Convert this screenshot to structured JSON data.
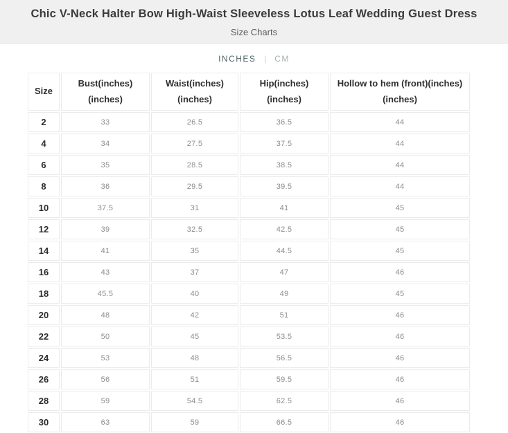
{
  "page": {
    "title": "Chic V-Neck Halter Bow High-Waist Sleeveless Lotus Leaf Wedding Guest Dress",
    "subtitle": "Size Charts"
  },
  "unit_toggle": {
    "options": [
      {
        "label": "INCHES",
        "selected": true
      },
      {
        "label": "CM",
        "selected": false
      }
    ],
    "separator": "|",
    "selected_color": "#4f6367",
    "unselected_color": "#a7b1b4"
  },
  "size_chart": {
    "columns": [
      {
        "label": "Size",
        "sublabel": ""
      },
      {
        "label": "Bust(inches)",
        "sublabel": "(inches)"
      },
      {
        "label": "Waist(inches)",
        "sublabel": "(inches)"
      },
      {
        "label": "Hip(inches)",
        "sublabel": "(inches)"
      },
      {
        "label": "Hollow to hem (front)(inches)",
        "sublabel": "(inches)"
      }
    ],
    "rows": [
      {
        "size": "2",
        "values": [
          "33",
          "26.5",
          "36.5",
          "44"
        ]
      },
      {
        "size": "4",
        "values": [
          "34",
          "27.5",
          "37.5",
          "44"
        ]
      },
      {
        "size": "6",
        "values": [
          "35",
          "28.5",
          "38.5",
          "44"
        ]
      },
      {
        "size": "8",
        "values": [
          "36",
          "29.5",
          "39.5",
          "44"
        ]
      },
      {
        "size": "10",
        "values": [
          "37.5",
          "31",
          "41",
          "45"
        ]
      },
      {
        "size": "12",
        "values": [
          "39",
          "32.5",
          "42.5",
          "45"
        ]
      },
      {
        "size": "14",
        "values": [
          "41",
          "35",
          "44.5",
          "45"
        ]
      },
      {
        "size": "16",
        "values": [
          "43",
          "37",
          "47",
          "46"
        ]
      },
      {
        "size": "18",
        "values": [
          "45.5",
          "40",
          "49",
          "45"
        ]
      },
      {
        "size": "20",
        "values": [
          "48",
          "42",
          "51",
          "46"
        ]
      },
      {
        "size": "22",
        "values": [
          "50",
          "45",
          "53.5",
          "46"
        ]
      },
      {
        "size": "24",
        "values": [
          "53",
          "48",
          "56.5",
          "46"
        ]
      },
      {
        "size": "26",
        "values": [
          "56",
          "51",
          "59.5",
          "46"
        ]
      },
      {
        "size": "28",
        "values": [
          "59",
          "54.5",
          "62.5",
          "46"
        ]
      },
      {
        "size": "30",
        "values": [
          "63",
          "59",
          "66.5",
          "46"
        ]
      }
    ]
  },
  "colors": {
    "header_background": "#f0f0f0",
    "table_border": "#ebebeb",
    "title_text": "#3b3b3b",
    "data_text": "#8d8d8d"
  }
}
